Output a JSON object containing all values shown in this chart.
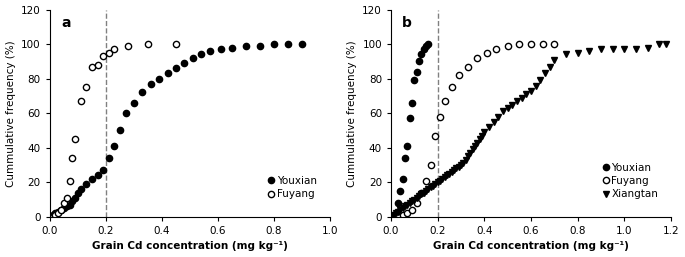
{
  "panel_a": {
    "title": "a",
    "xlim": [
      0.0,
      1.0
    ],
    "ylim": [
      0,
      120
    ],
    "yticks": [
      0,
      20,
      40,
      60,
      80,
      100,
      120
    ],
    "xticks": [
      0.0,
      0.2,
      0.4,
      0.6,
      0.8,
      1.0
    ],
    "xlabel": "Grain Cd concentration (mg kg⁻¹)",
    "ylabel": "Cummulative frequency (%)",
    "vline": 0.2,
    "youxian_x": [
      0.01,
      0.02,
      0.03,
      0.04,
      0.05,
      0.06,
      0.07,
      0.08,
      0.09,
      0.1,
      0.11,
      0.13,
      0.15,
      0.17,
      0.19,
      0.21,
      0.23,
      0.25,
      0.27,
      0.3,
      0.33,
      0.36,
      0.39,
      0.42,
      0.45,
      0.48,
      0.51,
      0.54,
      0.57,
      0.61,
      0.65,
      0.7,
      0.75,
      0.8,
      0.85,
      0.9
    ],
    "youxian_y": [
      1,
      2,
      3,
      4,
      5,
      6,
      7,
      9,
      11,
      14,
      16,
      19,
      22,
      24,
      27,
      34,
      41,
      50,
      60,
      66,
      72,
      77,
      80,
      83,
      86,
      89,
      92,
      94,
      96,
      97,
      98,
      99,
      99,
      100,
      100,
      100
    ],
    "fuyang_x": [
      0.01,
      0.02,
      0.03,
      0.04,
      0.05,
      0.06,
      0.07,
      0.08,
      0.09,
      0.11,
      0.13,
      0.15,
      0.17,
      0.19,
      0.21,
      0.23,
      0.28,
      0.35,
      0.45
    ],
    "fuyang_y": [
      0,
      1,
      2,
      4,
      8,
      11,
      21,
      34,
      45,
      67,
      75,
      87,
      88,
      93,
      95,
      97,
      99,
      100,
      100
    ],
    "legend_youxian": "Youxian",
    "legend_fuyang": "Fuyang"
  },
  "panel_b": {
    "title": "b",
    "xlim": [
      0.0,
      1.2
    ],
    "ylim": [
      0,
      120
    ],
    "yticks": [
      0,
      20,
      40,
      60,
      80,
      100,
      120
    ],
    "xticks": [
      0.0,
      0.2,
      0.4,
      0.6,
      0.8,
      1.0,
      1.2
    ],
    "xlabel": "Grain Cd concentration (mg kg⁻¹)",
    "ylabel": "Cummulative frequency (%)",
    "vline": 0.2,
    "youxian_x": [
      0.01,
      0.02,
      0.03,
      0.04,
      0.05,
      0.06,
      0.07,
      0.08,
      0.09,
      0.1,
      0.11,
      0.12,
      0.13,
      0.14,
      0.15,
      0.16
    ],
    "youxian_y": [
      0,
      1,
      8,
      15,
      22,
      34,
      41,
      57,
      66,
      79,
      84,
      90,
      94,
      97,
      99,
      100
    ],
    "fuyang_x": [
      0.03,
      0.05,
      0.07,
      0.09,
      0.11,
      0.13,
      0.15,
      0.17,
      0.19,
      0.21,
      0.23,
      0.26,
      0.29,
      0.33,
      0.37,
      0.41,
      0.45,
      0.5,
      0.55,
      0.6,
      0.65,
      0.7
    ],
    "fuyang_y": [
      0,
      1,
      2,
      4,
      8,
      14,
      21,
      30,
      47,
      58,
      67,
      75,
      82,
      87,
      92,
      95,
      97,
      99,
      100,
      100,
      100,
      100
    ],
    "xiangtan_x": [
      0.01,
      0.02,
      0.03,
      0.04,
      0.05,
      0.06,
      0.07,
      0.08,
      0.09,
      0.1,
      0.11,
      0.12,
      0.13,
      0.14,
      0.15,
      0.16,
      0.17,
      0.18,
      0.19,
      0.2,
      0.21,
      0.22,
      0.23,
      0.24,
      0.25,
      0.26,
      0.27,
      0.28,
      0.29,
      0.3,
      0.31,
      0.32,
      0.33,
      0.34,
      0.35,
      0.36,
      0.37,
      0.38,
      0.39,
      0.4,
      0.42,
      0.44,
      0.46,
      0.48,
      0.5,
      0.52,
      0.54,
      0.56,
      0.58,
      0.6,
      0.62,
      0.64,
      0.66,
      0.68,
      0.7,
      0.75,
      0.8,
      0.85,
      0.9,
      0.95,
      1.0,
      1.05,
      1.1,
      1.15,
      1.18
    ],
    "xiangtan_y": [
      1,
      2,
      3,
      4,
      5,
      6,
      7,
      8,
      9,
      10,
      11,
      12,
      13,
      14,
      15,
      16,
      17,
      18,
      19,
      20,
      21,
      22,
      23,
      24,
      25,
      26,
      27,
      28,
      29,
      30,
      31,
      33,
      35,
      37,
      39,
      41,
      43,
      45,
      47,
      49,
      52,
      55,
      58,
      61,
      63,
      65,
      67,
      69,
      71,
      73,
      76,
      79,
      83,
      87,
      91,
      94,
      95,
      96,
      97,
      97,
      97,
      97,
      98,
      100,
      100
    ],
    "legend_youxian": "Youxian",
    "legend_fuyang": "Fuyang",
    "legend_xiangtan": "Xiangtan"
  },
  "figure": {
    "bgcolor": "#ffffff",
    "markersize": 4.5,
    "color_black": "#000000",
    "color_white": "#ffffff"
  }
}
